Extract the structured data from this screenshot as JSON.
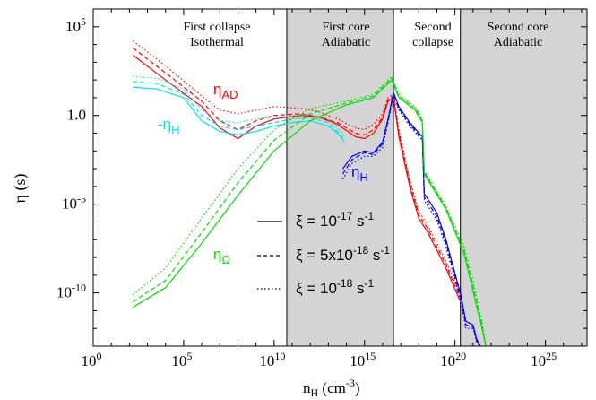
{
  "chart_data": {
    "type": "line",
    "xlabel": "n",
    "xlabel_sub": "H",
    "xlabel_unit": " (cm",
    "xlabel_unit_sup": "-3",
    "xlabel_close": ")",
    "ylabel": "η (s)",
    "xscale": "log",
    "yscale": "log",
    "xlim_exp": [
      0,
      27.3
    ],
    "ylim_exp": [
      -13,
      6
    ],
    "x_tick_exponents": [
      0,
      5,
      10,
      15,
      20,
      25
    ],
    "y_tick_exponents": [
      5,
      0,
      -5,
      -10
    ],
    "tick_base": "10",
    "y_tick_text": {
      "5": "10",
      "0": "1.0",
      "-5": "10",
      "-10": "10"
    },
    "y_tick_sup": {
      "5": "5",
      "0": "",
      "-5": "-5",
      "-10": "-10"
    },
    "shaded_regions_exp": [
      [
        10.7,
        16.6
      ],
      [
        20.3,
        27.3
      ]
    ],
    "phase_boundaries_exp": [
      10.7,
      16.6,
      20.3
    ],
    "phase_labels": [
      {
        "line1": "First collapse",
        "line2": "Isothermal"
      },
      {
        "line1": "First core",
        "line2": "Adiabatic"
      },
      {
        "line1": "Second",
        "line2": "collapse"
      },
      {
        "line1": "Second core",
        "line2": "Adiabatic"
      }
    ],
    "curve_labels": {
      "ad": {
        "main": "η",
        "sub": "AD"
      },
      "h_neg": {
        "main": "-η",
        "sub": "H"
      },
      "h": {
        "main": "η",
        "sub": "H"
      },
      "ohm": {
        "main": "η",
        "sub": "Ω"
      }
    },
    "legend": [
      {
        "style": "solid",
        "text": "ξ = 10",
        "sup": "-17",
        "unit": " s",
        "unit_sup": "-1"
      },
      {
        "style": "dashed",
        "text": "ξ = 5x10",
        "sup": "-18",
        "unit": " s",
        "unit_sup": "-1"
      },
      {
        "style": "dotted",
        "text": "ξ = 10",
        "sup": "-18",
        "unit": " s",
        "unit_sup": "-1"
      }
    ],
    "colors": {
      "ad": "#ff0000",
      "h_neg": "#00e5e5",
      "h": "#0000ff",
      "ohm": "#00dd00",
      "shade": "#d4d4d4"
    },
    "series": [
      {
        "kind": "ad",
        "style": "solid",
        "points": [
          [
            2.2,
            3.4
          ],
          [
            4,
            2.0
          ],
          [
            6,
            0.5
          ],
          [
            7,
            -0.7
          ],
          [
            8,
            -1.3
          ],
          [
            9,
            -0.6
          ],
          [
            10,
            -0.2
          ],
          [
            11.5,
            0.0
          ],
          [
            12.5,
            -0.1
          ],
          [
            13.5,
            -0.5
          ],
          [
            14.5,
            -1.2
          ],
          [
            15,
            -1.3
          ],
          [
            15.5,
            -1.0
          ],
          [
            16,
            -0.2
          ],
          [
            16.3,
            0.8
          ],
          [
            16.6,
            1.0
          ],
          [
            16.9,
            -1.2
          ],
          [
            17.5,
            -4
          ],
          [
            18,
            -5.8
          ],
          [
            18.5,
            -6.6
          ],
          [
            19.5,
            -8.6
          ],
          [
            20.3,
            -10.5
          ]
        ]
      },
      {
        "kind": "ad",
        "style": "dashed",
        "points": [
          [
            2.2,
            3.8
          ],
          [
            4,
            2.4
          ],
          [
            6,
            0.8
          ],
          [
            7,
            -0.3
          ],
          [
            8,
            -0.8
          ],
          [
            9,
            -0.3
          ],
          [
            10,
            0.0
          ],
          [
            11.5,
            0.1
          ],
          [
            12.5,
            -0.1
          ],
          [
            13.5,
            -0.4
          ],
          [
            14.5,
            -1.0
          ],
          [
            15,
            -1.1
          ],
          [
            15.5,
            -0.8
          ],
          [
            16,
            -0.1
          ],
          [
            16.3,
            0.9
          ],
          [
            16.6,
            1.1
          ],
          [
            16.9,
            -1.0
          ],
          [
            17.5,
            -3.8
          ],
          [
            18,
            -5.6
          ],
          [
            18.5,
            -6.4
          ],
          [
            19.5,
            -8.4
          ],
          [
            20.3,
            -10.3
          ]
        ]
      },
      {
        "kind": "ad",
        "style": "dotted",
        "points": [
          [
            2.2,
            4.2
          ],
          [
            4,
            2.8
          ],
          [
            6,
            1.1
          ],
          [
            7,
            0.3
          ],
          [
            8,
            0.1
          ],
          [
            9,
            0.3
          ],
          [
            10,
            0.5
          ],
          [
            11.5,
            0.4
          ],
          [
            12.5,
            0.2
          ],
          [
            13.5,
            -0.2
          ],
          [
            14.5,
            -0.7
          ],
          [
            15,
            -0.8
          ],
          [
            15.5,
            -0.5
          ],
          [
            16,
            0.1
          ],
          [
            16.3,
            1.0
          ],
          [
            16.6,
            1.2
          ],
          [
            16.9,
            -0.8
          ],
          [
            17.5,
            -3.6
          ],
          [
            18,
            -5.4
          ],
          [
            18.5,
            -6.2
          ],
          [
            19.5,
            -8.2
          ],
          [
            20.3,
            -10.1
          ]
        ]
      },
      {
        "kind": "h_neg",
        "style": "solid",
        "points": [
          [
            2.2,
            1.6
          ],
          [
            3.5,
            1.5
          ],
          [
            5,
            1.0
          ],
          [
            6,
            -0.3
          ],
          [
            7,
            -0.9
          ],
          [
            8,
            -1.1
          ],
          [
            9,
            -0.9
          ],
          [
            10,
            -0.6
          ],
          [
            11,
            -0.4
          ],
          [
            12,
            -0.3
          ],
          [
            13,
            -0.6
          ],
          [
            13.5,
            -1.0
          ],
          [
            13.9,
            -1.5
          ]
        ]
      },
      {
        "kind": "h_neg",
        "style": "dashed",
        "points": [
          [
            2.2,
            1.9
          ],
          [
            3.5,
            1.8
          ],
          [
            5,
            1.2
          ],
          [
            6,
            0.0
          ],
          [
            7,
            -0.6
          ],
          [
            8,
            -0.8
          ],
          [
            9,
            -0.6
          ],
          [
            10,
            -0.4
          ],
          [
            11,
            -0.2
          ],
          [
            12,
            -0.1
          ],
          [
            13,
            -0.4
          ],
          [
            13.5,
            -0.9
          ],
          [
            13.9,
            -1.4
          ]
        ]
      },
      {
        "kind": "h_neg",
        "style": "dotted",
        "points": [
          [
            2.2,
            2.2
          ],
          [
            3.5,
            2.1
          ],
          [
            5,
            1.5
          ],
          [
            6,
            0.3
          ],
          [
            7,
            -0.3
          ],
          [
            8,
            -0.4
          ],
          [
            9,
            -0.2
          ],
          [
            10,
            -0.1
          ],
          [
            11,
            0.0
          ],
          [
            12,
            0.1
          ],
          [
            13,
            -0.2
          ],
          [
            13.5,
            -0.7
          ],
          [
            13.9,
            -1.2
          ]
        ]
      },
      {
        "kind": "h",
        "style": "solid",
        "points": [
          [
            13.8,
            -3.0
          ],
          [
            14.3,
            -2.3
          ],
          [
            15,
            -2.0
          ],
          [
            15.5,
            -2.1
          ],
          [
            16,
            -1.5
          ],
          [
            16.3,
            -0.2
          ],
          [
            16.6,
            1.3
          ],
          [
            16.9,
            0.5
          ],
          [
            17.5,
            -0.4
          ],
          [
            18.2,
            -1.2
          ],
          [
            18.3,
            -4.4
          ],
          [
            19,
            -5.5
          ],
          [
            19.5,
            -7.0
          ],
          [
            20,
            -8.9
          ],
          [
            20.3,
            -10.0
          ],
          [
            20.6,
            -11.6
          ],
          [
            21,
            -11.8
          ],
          [
            21.2,
            -12.6
          ],
          [
            21.4,
            -13.0
          ]
        ]
      },
      {
        "kind": "h",
        "style": "dashed",
        "points": [
          [
            13.8,
            -3.3
          ],
          [
            14.3,
            -2.5
          ],
          [
            15,
            -2.1
          ],
          [
            15.5,
            -2.2
          ],
          [
            16,
            -1.6
          ],
          [
            16.3,
            -0.3
          ],
          [
            16.6,
            1.2
          ],
          [
            16.9,
            0.4
          ],
          [
            17.5,
            -0.5
          ],
          [
            18.2,
            -1.3
          ],
          [
            18.3,
            -4.6
          ],
          [
            19,
            -5.7
          ],
          [
            19.5,
            -7.2
          ],
          [
            20,
            -9.1
          ],
          [
            20.3,
            -10.2
          ],
          [
            20.6,
            -11.8
          ],
          [
            21,
            -11.9
          ],
          [
            21.2,
            -12.7
          ],
          [
            21.4,
            -13.0
          ]
        ]
      },
      {
        "kind": "h",
        "style": "dotted",
        "points": [
          [
            13.8,
            -3.6
          ],
          [
            14.3,
            -2.7
          ],
          [
            15,
            -2.3
          ],
          [
            15.5,
            -2.3
          ],
          [
            16,
            -1.8
          ],
          [
            16.3,
            -0.4
          ],
          [
            16.6,
            1.1
          ],
          [
            16.9,
            0.3
          ],
          [
            17.5,
            -0.6
          ],
          [
            18.2,
            -1.4
          ],
          [
            18.3,
            -4.8
          ],
          [
            19,
            -5.9
          ],
          [
            19.5,
            -7.4
          ],
          [
            20,
            -9.3
          ],
          [
            20.3,
            -10.4
          ],
          [
            20.6,
            -12.0
          ],
          [
            21,
            -12.0
          ],
          [
            21.2,
            -12.8
          ],
          [
            21.4,
            -13.0
          ]
        ]
      },
      {
        "kind": "ohm",
        "style": "solid",
        "points": [
          [
            2.2,
            -10.8
          ],
          [
            4,
            -9.7
          ],
          [
            6,
            -7.2
          ],
          [
            8,
            -4.5
          ],
          [
            10,
            -2.0
          ],
          [
            12,
            -0.3
          ],
          [
            14,
            0.6
          ],
          [
            15.5,
            1.0
          ],
          [
            16.5,
            2.0
          ],
          [
            16.9,
            1.0
          ],
          [
            17.8,
            0.3
          ],
          [
            18.2,
            -0.4
          ],
          [
            18.3,
            -3.3
          ],
          [
            19.5,
            -5.3
          ],
          [
            20.5,
            -7.8
          ],
          [
            21,
            -9.9
          ],
          [
            21.5,
            -12.0
          ],
          [
            21.7,
            -13.0
          ]
        ]
      },
      {
        "kind": "ohm",
        "style": "dashed",
        "points": [
          [
            2.2,
            -10.5
          ],
          [
            4,
            -9.3
          ],
          [
            6,
            -6.6
          ],
          [
            8,
            -3.8
          ],
          [
            10,
            -1.4
          ],
          [
            12,
            0.1
          ],
          [
            14,
            0.7
          ],
          [
            15.5,
            1.1
          ],
          [
            16.5,
            2.1
          ],
          [
            16.9,
            1.1
          ],
          [
            17.8,
            0.4
          ],
          [
            18.2,
            -0.3
          ],
          [
            18.3,
            -3.2
          ],
          [
            19.5,
            -5.2
          ],
          [
            20.5,
            -7.6
          ],
          [
            21,
            -9.6
          ],
          [
            21.5,
            -11.8
          ],
          [
            21.7,
            -13.0
          ]
        ]
      },
      {
        "kind": "ohm",
        "style": "dotted",
        "points": [
          [
            2.2,
            -10.1
          ],
          [
            4,
            -8.6
          ],
          [
            6,
            -5.8
          ],
          [
            8,
            -3.0
          ],
          [
            10,
            -0.8
          ],
          [
            12,
            0.4
          ],
          [
            14,
            0.8
          ],
          [
            15.5,
            1.2
          ],
          [
            16.5,
            2.2
          ],
          [
            16.9,
            1.2
          ],
          [
            17.8,
            0.5
          ],
          [
            18.2,
            -0.2
          ],
          [
            18.3,
            -3.1
          ],
          [
            19.5,
            -5.1
          ],
          [
            20.5,
            -7.4
          ],
          [
            21,
            -9.3
          ],
          [
            21.5,
            -11.6
          ],
          [
            21.7,
            -13.0
          ]
        ]
      }
    ]
  }
}
